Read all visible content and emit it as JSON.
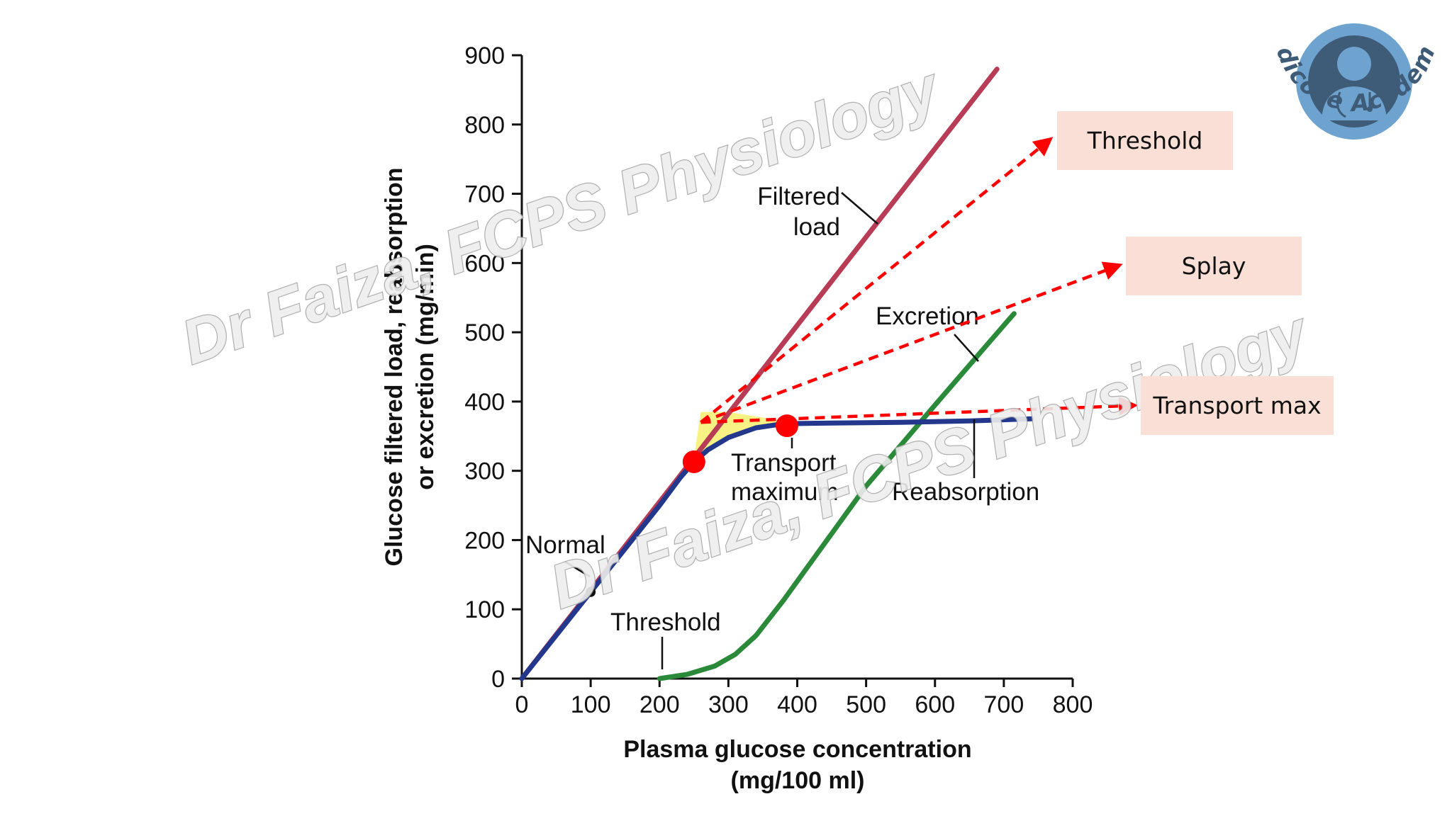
{
  "chart_data": {
    "type": "line",
    "xlabel_line1": "Plasma glucose concentration",
    "xlabel_line2": "(mg/100 ml)",
    "ylabel_line1": "Glucose filtered load, reabsorption",
    "ylabel_line2": "or excretion (mg/min)",
    "xlim": [
      0,
      800
    ],
    "ylim": [
      0,
      900
    ],
    "xticks": [
      0,
      100,
      200,
      300,
      400,
      500,
      600,
      700,
      800
    ],
    "yticks": [
      0,
      100,
      200,
      300,
      400,
      500,
      600,
      700,
      800,
      900
    ],
    "series": [
      {
        "key": "filtered",
        "color": "#b83c55",
        "points": [
          [
            0,
            0
          ],
          [
            690,
            880
          ]
        ]
      },
      {
        "key": "reabsorption",
        "color": "#23378c",
        "points": [
          [
            0,
            0
          ],
          [
            100,
            125
          ],
          [
            200,
            250
          ],
          [
            230,
            290
          ],
          [
            250,
            313
          ],
          [
            270,
            330
          ],
          [
            300,
            348
          ],
          [
            340,
            362
          ],
          [
            380,
            368
          ],
          [
            450,
            369
          ],
          [
            550,
            370
          ],
          [
            650,
            372
          ],
          [
            740,
            375
          ]
        ]
      },
      {
        "key": "excretion",
        "color": "#2a8a3a",
        "points": [
          [
            200,
            0
          ],
          [
            240,
            6
          ],
          [
            280,
            18
          ],
          [
            310,
            35
          ],
          [
            340,
            62
          ],
          [
            380,
            113
          ],
          [
            420,
            168
          ],
          [
            500,
            278
          ],
          [
            600,
            395
          ],
          [
            700,
            510
          ],
          [
            715,
            527
          ]
        ]
      }
    ],
    "labels": {
      "filtered_line1": "Filtered",
      "filtered_line2": "load",
      "excretion": "Excretion",
      "transport_line1": "Transport",
      "transport_line2": "maximum",
      "reabsorption": "Reabsorption",
      "normal": "Normal",
      "threshold": "Threshold"
    },
    "normal_point": [
      100,
      125
    ],
    "red_points": [
      [
        250,
        313
      ],
      [
        385,
        365
      ]
    ],
    "arrow_origin": [
      260,
      370
    ],
    "arrow_targets": [
      "threshold",
      "splay",
      "tmax"
    ]
  },
  "callouts": {
    "threshold": "Threshold",
    "splay": "Splay",
    "tmax": "Transport max"
  },
  "watermark": "Dr Faiza, FCPS Physiology",
  "logo": {
    "text": "Medicose Academics",
    "ring_color": "#3e5b78",
    "bg_color": "#6ea3cf"
  },
  "colors": {
    "arrow": "#ff0000",
    "highlight": "#f7ef6e",
    "red_point": "#ff0000"
  }
}
